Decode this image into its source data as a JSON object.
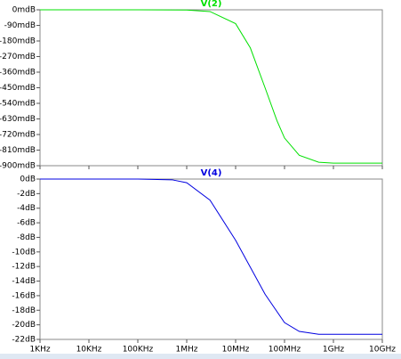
{
  "chart_data": [
    {
      "type": "line",
      "xscale": "log",
      "x": [
        1000,
        10000,
        100000,
        1000000,
        3000000,
        10000000,
        20000000,
        40000000,
        70000000,
        100000000,
        200000000,
        500000000,
        1000000000,
        10000000000
      ],
      "series": [
        {
          "name": "V(2)",
          "color": "#00e000",
          "values": [
            0,
            0,
            0,
            -1,
            -10,
            -80,
            -220,
            -450,
            -640,
            -740,
            -840,
            -880,
            -885,
            -885
          ]
        }
      ],
      "xlim": [
        1000,
        10000000000
      ],
      "ylim": [
        -900,
        0
      ],
      "yticks": [
        {
          "value": 0,
          "label": "0mdB"
        },
        {
          "value": -90,
          "label": "-90mdB"
        },
        {
          "value": -180,
          "label": "-180mdB"
        },
        {
          "value": -270,
          "label": "-270mdB"
        },
        {
          "value": -360,
          "label": "-360mdB"
        },
        {
          "value": -450,
          "label": "-450mdB"
        },
        {
          "value": -540,
          "label": "-540mdB"
        },
        {
          "value": -630,
          "label": "-630mdB"
        },
        {
          "value": -720,
          "label": "-720mdB"
        },
        {
          "value": -810,
          "label": "-810mdB"
        },
        {
          "value": -900,
          "label": "-900mdB"
        }
      ]
    },
    {
      "type": "line",
      "xscale": "log",
      "x": [
        1000,
        10000,
        100000,
        500000,
        1000000,
        3000000,
        10000000,
        20000000,
        40000000,
        100000000,
        200000000,
        500000000,
        1000000000,
        10000000000
      ],
      "series": [
        {
          "name": "V(4)",
          "color": "#0000e0",
          "values": [
            0,
            0,
            0,
            -0.1,
            -0.5,
            -2.9,
            -8.4,
            -12.1,
            -15.8,
            -19.7,
            -20.9,
            -21.3,
            -21.3,
            -21.3
          ]
        }
      ],
      "xlim": [
        1000,
        10000000000
      ],
      "ylim": [
        -22,
        0
      ],
      "xticks": [
        {
          "value": 1000,
          "label": "1KHz"
        },
        {
          "value": 10000,
          "label": "10KHz"
        },
        {
          "value": 100000,
          "label": "100KHz"
        },
        {
          "value": 1000000,
          "label": "1MHz"
        },
        {
          "value": 10000000,
          "label": "10MHz"
        },
        {
          "value": 100000000,
          "label": "100MHz"
        },
        {
          "value": 1000000000,
          "label": "1GHz"
        },
        {
          "value": 10000000000,
          "label": "10GHz"
        }
      ],
      "yticks": [
        {
          "value": 0,
          "label": "0dB"
        },
        {
          "value": -2,
          "label": "-2dB"
        },
        {
          "value": -4,
          "label": "-4dB"
        },
        {
          "value": -6,
          "label": "-6dB"
        },
        {
          "value": -8,
          "label": "-8dB"
        },
        {
          "value": -10,
          "label": "-10dB"
        },
        {
          "value": -12,
          "label": "-12dB"
        },
        {
          "value": -14,
          "label": "-14dB"
        },
        {
          "value": -16,
          "label": "-16dB"
        },
        {
          "value": -18,
          "label": "-18dB"
        },
        {
          "value": -20,
          "label": "-20dB"
        },
        {
          "value": -22,
          "label": "-22dB"
        }
      ]
    }
  ]
}
